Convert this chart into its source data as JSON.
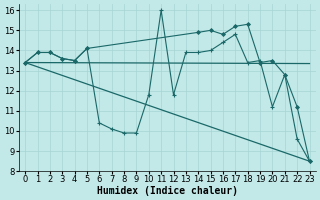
{
  "xlabel": "Humidex (Indice chaleur)",
  "background_color": "#c2e8e8",
  "grid_color": "#a8d4d4",
  "line_color": "#1a6868",
  "xlim": [
    -0.5,
    23.5
  ],
  "ylim": [
    8,
    16.3
  ],
  "yticks": [
    8,
    9,
    10,
    11,
    12,
    13,
    14,
    15,
    16
  ],
  "xticks": [
    0,
    1,
    2,
    3,
    4,
    5,
    6,
    7,
    8,
    9,
    10,
    11,
    12,
    13,
    14,
    15,
    16,
    17,
    18,
    19,
    20,
    21,
    22,
    23
  ],
  "flat_line_x": [
    0,
    23
  ],
  "flat_line_y": [
    13.4,
    13.35
  ],
  "diag_line_x": [
    0,
    23
  ],
  "diag_line_y": [
    13.4,
    8.5
  ],
  "jagged1_x": [
    0,
    1,
    2,
    3,
    4,
    5,
    6,
    7,
    8,
    9,
    10,
    11,
    12,
    13,
    14,
    15,
    16,
    17,
    18,
    19,
    20,
    21,
    22,
    23
  ],
  "jagged1_y": [
    13.4,
    13.9,
    13.9,
    13.6,
    13.5,
    14.1,
    10.4,
    10.1,
    9.9,
    9.9,
    11.8,
    16.0,
    11.8,
    13.9,
    13.9,
    14.0,
    14.4,
    14.8,
    13.4,
    13.5,
    11.2,
    12.8,
    9.6,
    8.5
  ],
  "jagged2_x": [
    0,
    1,
    2,
    3,
    4,
    5,
    14,
    15,
    16,
    17,
    18,
    19,
    20,
    21,
    22,
    23
  ],
  "jagged2_y": [
    13.4,
    13.9,
    13.9,
    13.6,
    13.5,
    14.1,
    14.9,
    15.0,
    14.8,
    15.2,
    15.3,
    13.4,
    13.5,
    12.8,
    11.2,
    8.5
  ],
  "tick_fontsize": 6,
  "label_fontsize": 7
}
